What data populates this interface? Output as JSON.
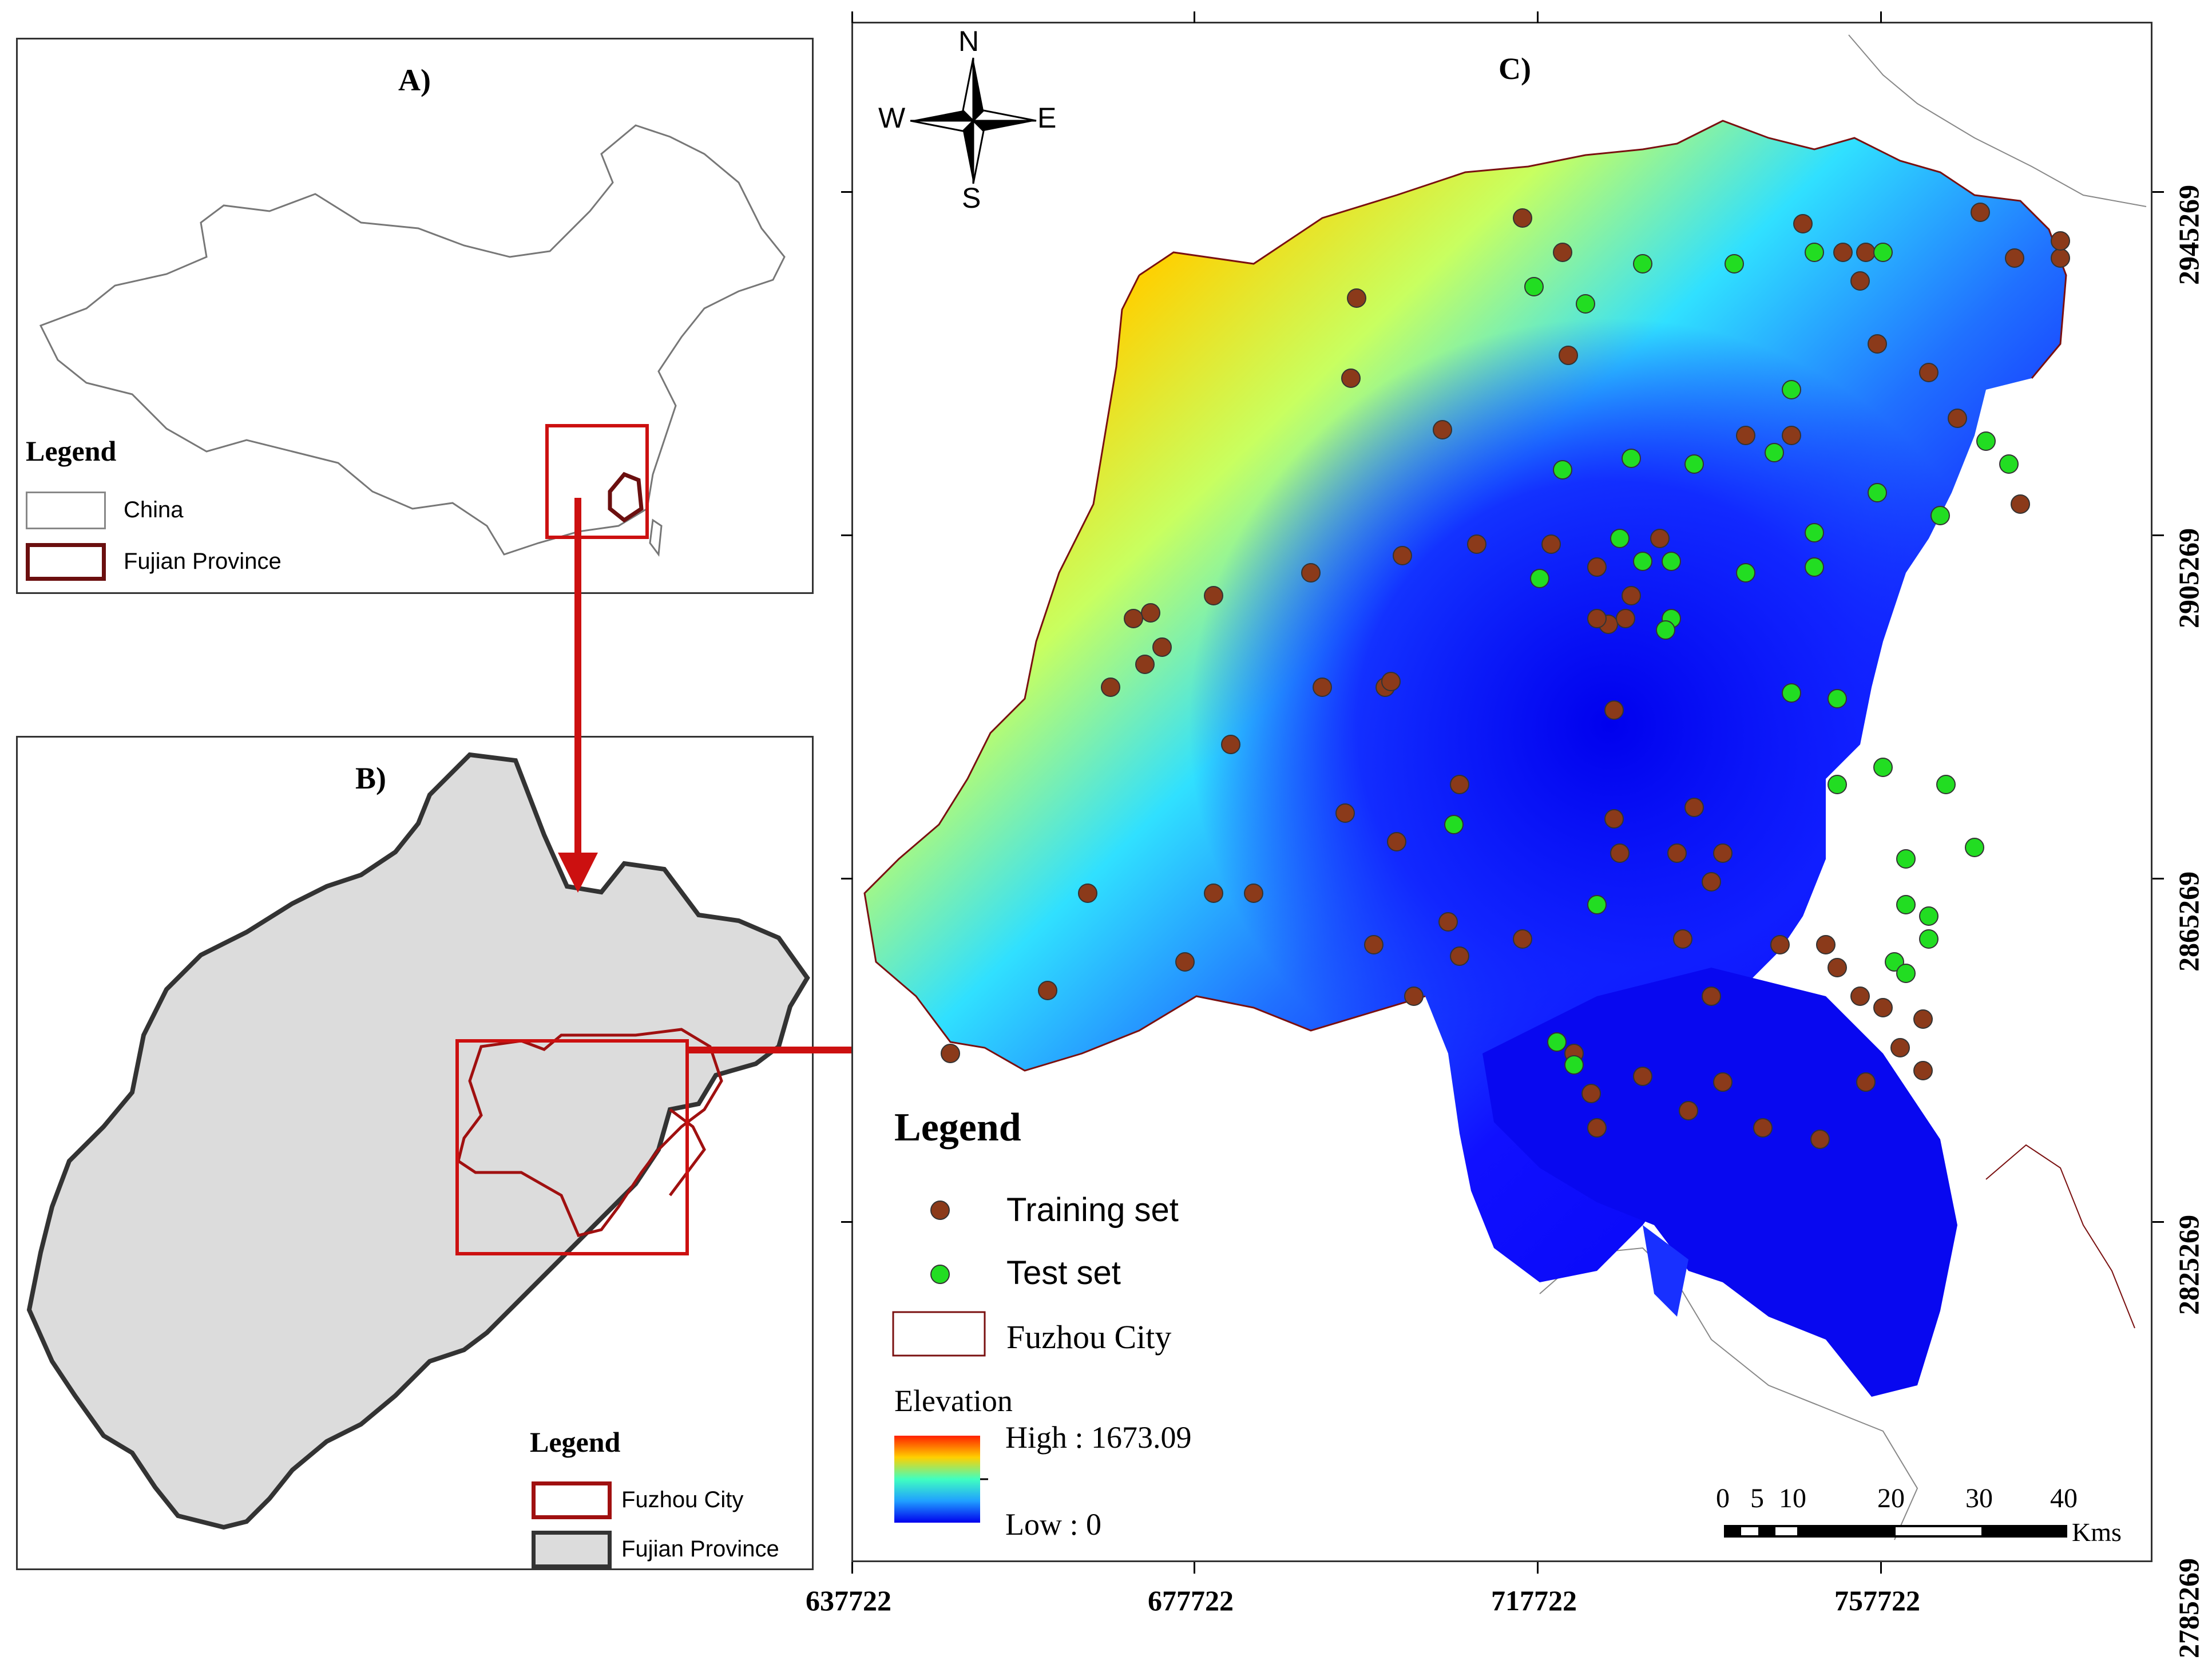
{
  "panelA": {
    "title": "A)",
    "legend_title": "Legend",
    "legend_items": [
      {
        "label": "China",
        "color": "#ffffff",
        "border": "#888888"
      },
      {
        "label": "Fujian Province",
        "color": "#ffffff",
        "border": "#7a1010"
      }
    ]
  },
  "panelB": {
    "title": "B)",
    "legend_title": "Legend",
    "legend_items": [
      {
        "label": "Fuzhou City",
        "color": "#ffffff",
        "border": "#a01010"
      },
      {
        "label": "Fujian Province",
        "color": "#dcdcdc",
        "border": "#333333"
      }
    ]
  },
  "panelC": {
    "title": "C)",
    "north_arrow": {
      "n": "N",
      "s": "S",
      "e": "E",
      "w": "W",
      "icon": "compass-rose-icon"
    },
    "legend_title": "Legend",
    "points_legend": [
      {
        "label": "Training set",
        "color": "#8b3a1a"
      },
      {
        "label": "Test set",
        "color": "#22dd22"
      }
    ],
    "boundary_legend": {
      "label": "Fuzhou City",
      "color": "#7a1010"
    },
    "elevation": {
      "title": "Elevation",
      "high": "High : 1673.09",
      "low": "Low : 0"
    },
    "scalebar": {
      "ticks": [
        "0",
        "5",
        "10",
        "20",
        "30",
        "40"
      ],
      "unit": "Kms"
    },
    "x_ticks": [
      "637722",
      "677722",
      "717722",
      "757722"
    ],
    "y_ticks": [
      "2945269",
      "2905269",
      "2865269",
      "2825269",
      "2785269"
    ]
  },
  "colors": {
    "arrow": "#cc1010",
    "fuzhou_boundary": "#a01010",
    "training": "#8b3a1a",
    "test": "#22dd22"
  }
}
